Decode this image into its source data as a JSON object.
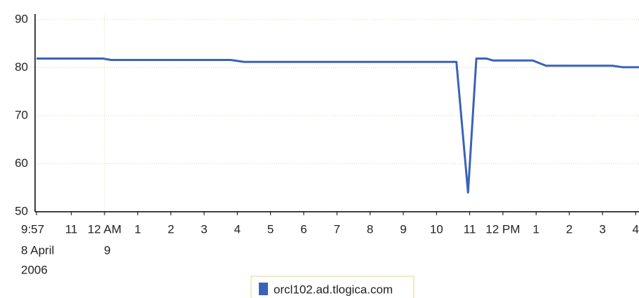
{
  "chart_data": {
    "type": "line",
    "x": [
      21.95,
      23.95,
      24.2,
      27.8,
      28.2,
      34.6,
      34.95,
      35.2,
      35.5,
      35.7,
      36.9,
      37.3,
      39.3,
      39.6,
      40.1
    ],
    "series": [
      {
        "name": "orcl102.ad.tlogica.com",
        "color": "#3a62b8",
        "values": [
          81.9,
          81.9,
          81.6,
          81.6,
          81.2,
          81.2,
          54,
          81.9,
          81.9,
          81.5,
          81.5,
          80.4,
          80.4,
          80.1,
          80.1
        ]
      }
    ],
    "xlim": [
      21.95,
      40.1
    ],
    "xticks": [
      {
        "value": 21.95,
        "label": "9:57"
      },
      {
        "value": 23,
        "label": "11"
      },
      {
        "value": 24,
        "label": "12 AM"
      },
      {
        "value": 25,
        "label": "1"
      },
      {
        "value": 26,
        "label": "2"
      },
      {
        "value": 27,
        "label": "3"
      },
      {
        "value": 28,
        "label": "4"
      },
      {
        "value": 29,
        "label": "5"
      },
      {
        "value": 30,
        "label": "6"
      },
      {
        "value": 31,
        "label": "7"
      },
      {
        "value": 32,
        "label": "8"
      },
      {
        "value": 33,
        "label": "9"
      },
      {
        "value": 34,
        "label": "10"
      },
      {
        "value": 35,
        "label": "11"
      },
      {
        "value": 36,
        "label": "12 PM"
      },
      {
        "value": 37,
        "label": "1"
      },
      {
        "value": 38,
        "label": "2"
      },
      {
        "value": 39,
        "label": "3"
      },
      {
        "value": 40,
        "label": "4"
      }
    ],
    "x_date_labels": [
      {
        "value": 21.95,
        "label": "8 April"
      },
      {
        "value": 24,
        "label": "9"
      }
    ],
    "x_year_labels": [
      {
        "value": 21.95,
        "label": "2006"
      }
    ],
    "x_gridlines": [
      24
    ],
    "ylim": [
      50,
      90
    ],
    "yticks": [
      50,
      60,
      70,
      80,
      90
    ],
    "grid": true
  }
}
